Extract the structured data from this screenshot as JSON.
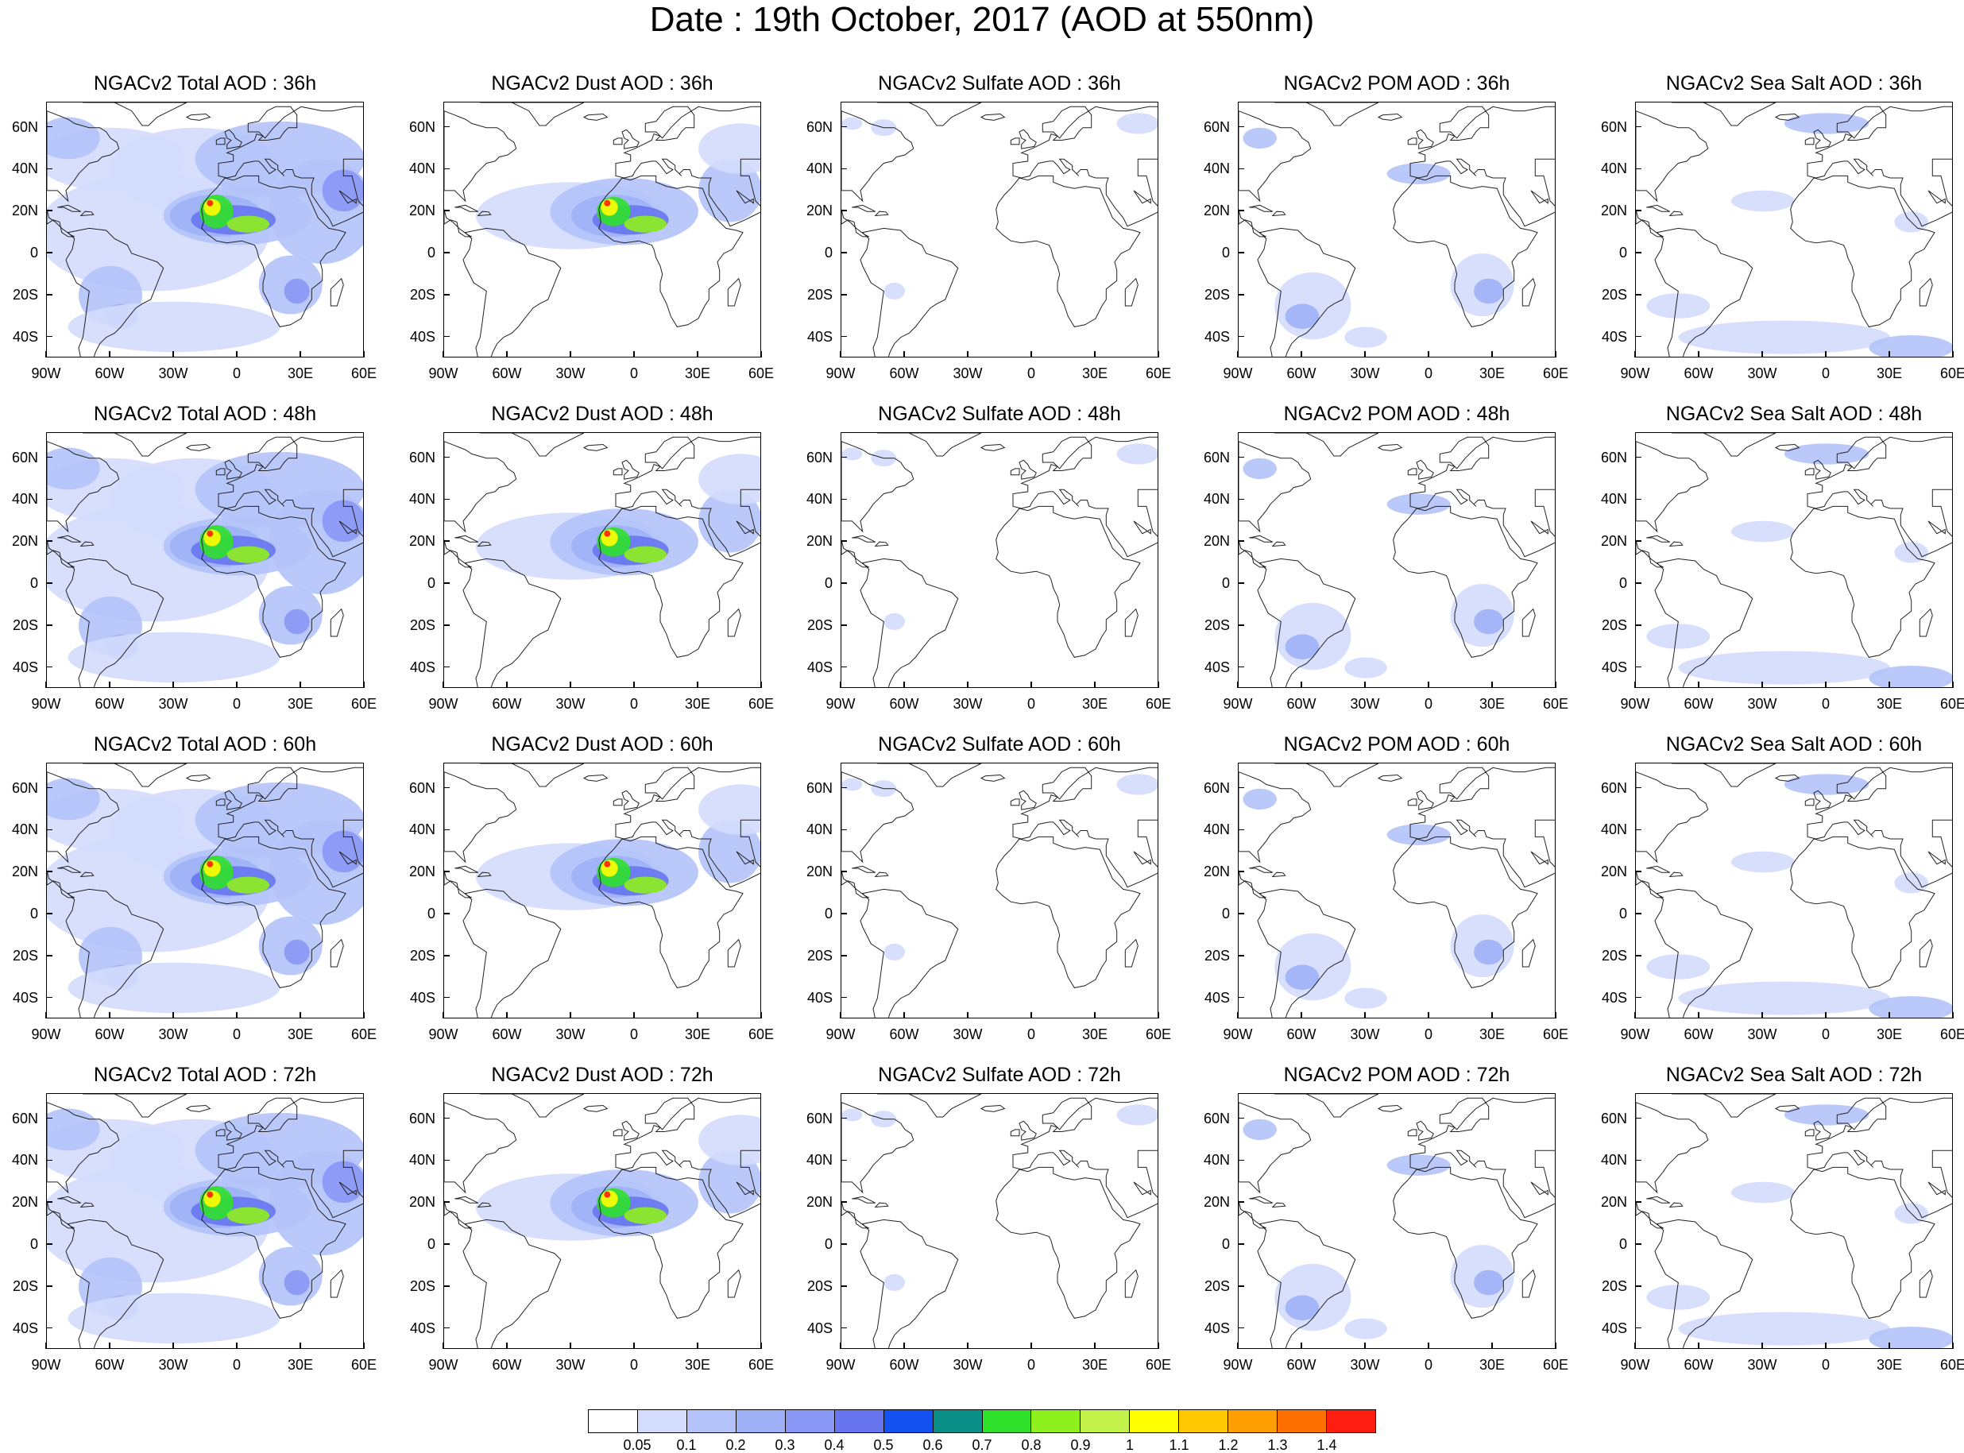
{
  "title": "Date : 19th October, 2017 (AOD at 550nm)",
  "panels": [
    {
      "title": "NGACv2 Total AOD : 36h",
      "species": "total",
      "intensity": 0.9
    },
    {
      "title": "NGACv2 Dust AOD : 36h",
      "species": "dust",
      "intensity": 0.9
    },
    {
      "title": "NGACv2 Sulfate AOD : 36h",
      "species": "sulfate",
      "intensity": 0.3
    },
    {
      "title": "NGACv2 POM AOD : 36h",
      "species": "pom",
      "intensity": 0.8
    },
    {
      "title": "NGACv2 Sea Salt AOD : 36h",
      "species": "seasalt",
      "intensity": 0.6
    },
    {
      "title": "NGACv2 Total AOD : 48h",
      "species": "total",
      "intensity": 1.0
    },
    {
      "title": "NGACv2 Dust AOD : 48h",
      "species": "dust",
      "intensity": 1.0
    },
    {
      "title": "NGACv2 Sulfate AOD : 48h",
      "species": "sulfate",
      "intensity": 0.4
    },
    {
      "title": "NGACv2 POM AOD : 48h",
      "species": "pom",
      "intensity": 0.9
    },
    {
      "title": "NGACv2 Sea Salt AOD : 48h",
      "species": "seasalt",
      "intensity": 0.7
    },
    {
      "title": "NGACv2 Total AOD : 60h",
      "species": "total",
      "intensity": 1.0
    },
    {
      "title": "NGACv2 Dust AOD : 60h",
      "species": "dust",
      "intensity": 0.95
    },
    {
      "title": "NGACv2 Sulfate AOD : 60h",
      "species": "sulfate",
      "intensity": 0.5
    },
    {
      "title": "NGACv2 POM AOD : 60h",
      "species": "pom",
      "intensity": 1.0
    },
    {
      "title": "NGACv2 Sea Salt AOD : 60h",
      "species": "seasalt",
      "intensity": 0.8
    },
    {
      "title": "NGACv2 Total AOD : 72h",
      "species": "total",
      "intensity": 1.0
    },
    {
      "title": "NGACv2 Dust AOD : 72h",
      "species": "dust",
      "intensity": 0.95
    },
    {
      "title": "NGACv2 Sulfate AOD : 72h",
      "species": "sulfate",
      "intensity": 0.5
    },
    {
      "title": "NGACv2 POM AOD : 72h",
      "species": "pom",
      "intensity": 1.0
    },
    {
      "title": "NGACv2 Sea Salt  AOD : 72h",
      "species": "seasalt",
      "intensity": 0.8
    }
  ],
  "lat_labels": [
    "60N",
    "40N",
    "20N",
    "0",
    "20S",
    "40S"
  ],
  "lon_labels": [
    "90W",
    "60W",
    "30W",
    "0",
    "30E",
    "60E"
  ],
  "map_extent": {
    "lon_min": -90,
    "lon_max": 60,
    "lat_min": -50,
    "lat_max": 72
  },
  "colorbar": {
    "labels": [
      "0.05",
      "0.1",
      "0.2",
      "0.3",
      "0.4",
      "0.5",
      "0.6",
      "0.7",
      "0.8",
      "0.9",
      "1",
      "1.1",
      "1.2",
      "1.3",
      "1.4"
    ],
    "colors": [
      "#ffffff",
      "#d3dcfd",
      "#b4c3f9",
      "#9fb1f6",
      "#8997f5",
      "#6775ef",
      "#1451f1",
      "#0a8f88",
      "#2fe12b",
      "#8ef01c",
      "#c3f34a",
      "#ffff00",
      "#ffc800",
      "#ff9e00",
      "#ff7000",
      "#ff1e10"
    ]
  }
}
